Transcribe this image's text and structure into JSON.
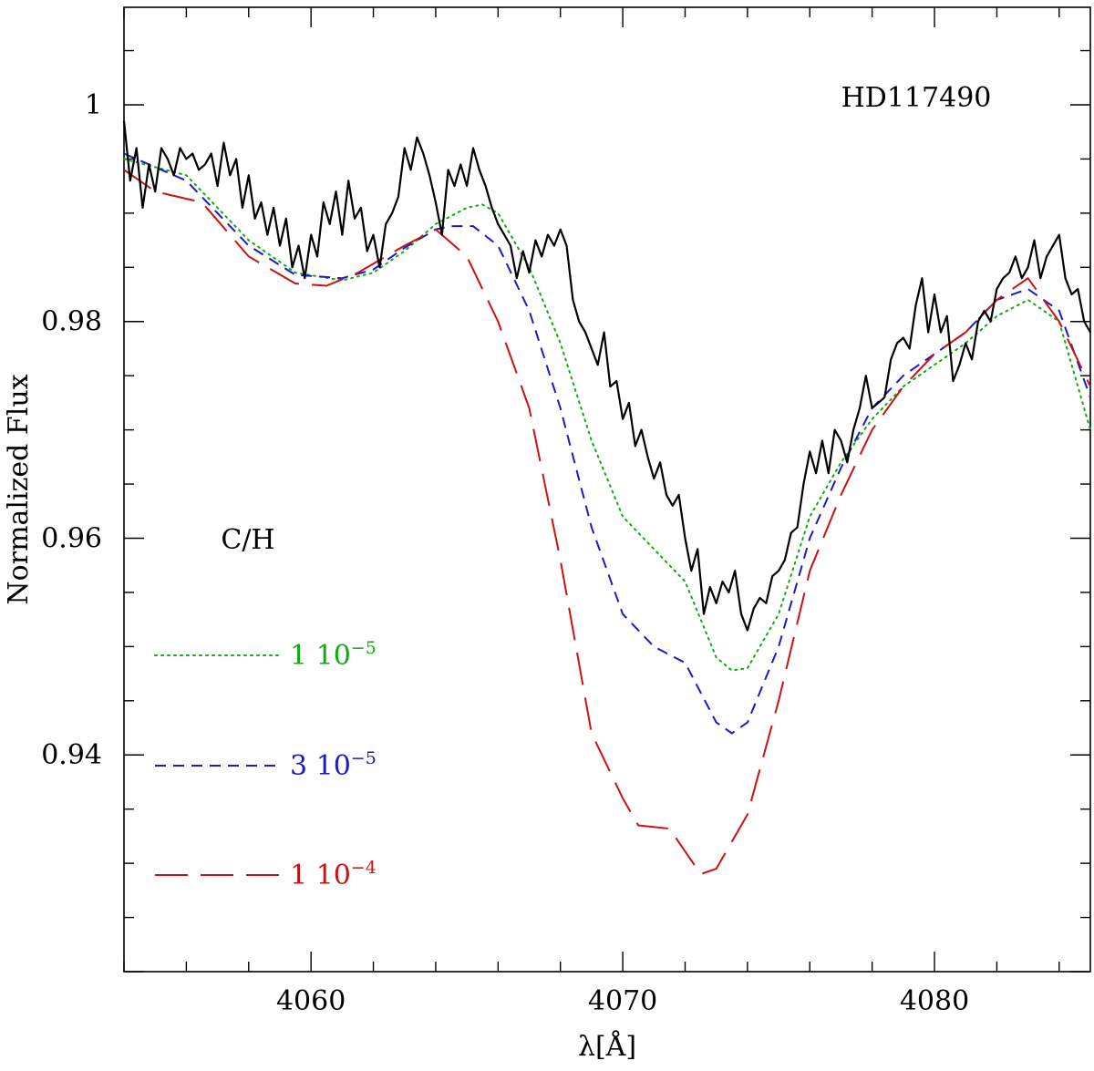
{
  "chart_data": {
    "type": "line",
    "title": "HD117490",
    "xlabel": "λ[Å]",
    "ylabel": "Normalized Flux",
    "xlim": [
      4054,
      4085
    ],
    "ylim": [
      0.92,
      1.009
    ],
    "x_ticks": [
      4060,
      4070,
      4080
    ],
    "x_tick_labels": [
      "4060",
      "4070",
      "4080"
    ],
    "y_ticks": [
      0.94,
      0.96,
      0.98,
      1.0
    ],
    "y_tick_labels": [
      "0.94",
      "0.96",
      "0.98",
      "1"
    ],
    "grid": false,
    "legend_title": "C/H",
    "legend_placement": "lower-left",
    "observed": {
      "color": "#000000",
      "x": [
        4054.0,
        4054.2,
        4054.4,
        4054.6,
        4054.8,
        4055.0,
        4055.2,
        4055.4,
        4055.6,
        4055.8,
        4056.0,
        4056.2,
        4056.4,
        4056.6,
        4056.8,
        4057.0,
        4057.2,
        4057.4,
        4057.6,
        4057.8,
        4058.0,
        4058.2,
        4058.4,
        4058.6,
        4058.8,
        4059.0,
        4059.2,
        4059.4,
        4059.6,
        4059.8,
        4060.0,
        4060.2,
        4060.4,
        4060.6,
        4060.8,
        4061.0,
        4061.2,
        4061.4,
        4061.6,
        4061.8,
        4062.0,
        4062.2,
        4062.4,
        4062.6,
        4062.8,
        4063.0,
        4063.2,
        4063.4,
        4063.6,
        4063.8,
        4064.0,
        4064.2,
        4064.4,
        4064.6,
        4064.8,
        4065.0,
        4065.2,
        4065.4,
        4065.6,
        4065.8,
        4066.0,
        4066.2,
        4066.4,
        4066.6,
        4066.8,
        4067.0,
        4067.2,
        4067.4,
        4067.6,
        4067.8,
        4068.0,
        4068.2,
        4068.4,
        4068.6,
        4068.8,
        4069.0,
        4069.2,
        4069.4,
        4069.6,
        4069.8,
        4070.0,
        4070.2,
        4070.4,
        4070.6,
        4070.8,
        4071.0,
        4071.2,
        4071.4,
        4071.6,
        4071.8,
        4072.0,
        4072.2,
        4072.4,
        4072.6,
        4072.8,
        4073.0,
        4073.2,
        4073.4,
        4073.6,
        4073.8,
        4074.0,
        4074.2,
        4074.4,
        4074.6,
        4074.8,
        4075.0,
        4075.2,
        4075.4,
        4075.6,
        4075.8,
        4076.0,
        4076.2,
        4076.4,
        4076.6,
        4076.8,
        4077.0,
        4077.2,
        4077.4,
        4077.6,
        4077.8,
        4078.0,
        4078.2,
        4078.4,
        4078.6,
        4078.8,
        4079.0,
        4079.2,
        4079.4,
        4079.6,
        4079.8,
        4080.0,
        4080.2,
        4080.4,
        4080.6,
        4080.8,
        4081.0,
        4081.2,
        4081.4,
        4081.6,
        4081.8,
        4082.0,
        4082.2,
        4082.4,
        4082.6,
        4082.8,
        4083.0,
        4083.2,
        4083.4,
        4083.6,
        4083.8,
        4084.0,
        4084.2,
        4084.4,
        4084.6,
        4084.8,
        4085.0
      ],
      "y": [
        0.9985,
        0.993,
        0.996,
        0.9905,
        0.9945,
        0.992,
        0.996,
        0.995,
        0.9935,
        0.996,
        0.995,
        0.9955,
        0.994,
        0.9945,
        0.9955,
        0.9925,
        0.9965,
        0.9935,
        0.995,
        0.9905,
        0.9935,
        0.9895,
        0.991,
        0.988,
        0.9905,
        0.987,
        0.9895,
        0.985,
        0.987,
        0.984,
        0.988,
        0.986,
        0.991,
        0.989,
        0.992,
        0.988,
        0.993,
        0.9895,
        0.9905,
        0.9865,
        0.988,
        0.985,
        0.989,
        0.99,
        0.9915,
        0.996,
        0.994,
        0.997,
        0.9955,
        0.9935,
        0.991,
        0.988,
        0.994,
        0.9925,
        0.9945,
        0.9925,
        0.996,
        0.994,
        0.9925,
        0.9905,
        0.989,
        0.988,
        0.987,
        0.984,
        0.9865,
        0.9845,
        0.9875,
        0.986,
        0.988,
        0.987,
        0.9885,
        0.987,
        0.982,
        0.98,
        0.979,
        0.9775,
        0.976,
        0.979,
        0.974,
        0.9745,
        0.971,
        0.9725,
        0.9685,
        0.97,
        0.9675,
        0.9655,
        0.967,
        0.964,
        0.963,
        0.964,
        0.96,
        0.957,
        0.959,
        0.953,
        0.9555,
        0.954,
        0.956,
        0.955,
        0.957,
        0.953,
        0.9515,
        0.9535,
        0.9545,
        0.954,
        0.9565,
        0.957,
        0.958,
        0.9605,
        0.961,
        0.965,
        0.968,
        0.966,
        0.969,
        0.966,
        0.97,
        0.969,
        0.967,
        0.97,
        0.972,
        0.975,
        0.972,
        0.9725,
        0.973,
        0.9765,
        0.978,
        0.9785,
        0.9775,
        0.9815,
        0.984,
        0.979,
        0.9825,
        0.979,
        0.9805,
        0.9745,
        0.976,
        0.978,
        0.9765,
        0.98,
        0.981,
        0.98,
        0.983,
        0.984,
        0.9845,
        0.986,
        0.984,
        0.985,
        0.9875,
        0.984,
        0.986,
        0.987,
        0.988,
        0.984,
        0.9825,
        0.983,
        0.98,
        0.979
      ]
    },
    "series": [
      {
        "name": "1 10⁻⁵",
        "name_mantissa": "1",
        "name_base": "10",
        "name_exponent": "−5",
        "color": "#11aa11",
        "style": "dotted",
        "x": [
          4054,
          4056,
          4058,
          4059.5,
          4061,
          4062,
          4063,
          4064,
          4065,
          4065.5,
          4066,
          4067,
          4068,
          4069,
          4070,
          4071,
          4072,
          4073,
          4073.5,
          4074,
          4075,
          4076,
          4077,
          4078,
          4079,
          4080,
          4081,
          4082,
          4083,
          4084,
          4085
        ],
        "y": [
          0.995,
          0.9935,
          0.9875,
          0.9845,
          0.9838,
          0.9845,
          0.9865,
          0.989,
          0.9905,
          0.9908,
          0.99,
          0.985,
          0.978,
          0.969,
          0.962,
          0.959,
          0.956,
          0.949,
          0.9478,
          0.948,
          0.953,
          0.962,
          0.967,
          0.971,
          0.974,
          0.976,
          0.978,
          0.9805,
          0.982,
          0.98,
          0.97
        ]
      },
      {
        "name": "3 10⁻⁵",
        "name_mantissa": "3",
        "name_base": "10",
        "name_exponent": "−5",
        "color": "#1a1acc",
        "style": "dashed",
        "x": [
          4054,
          4056,
          4058,
          4059.5,
          4061,
          4062,
          4063,
          4064,
          4064.5,
          4065.2,
          4066,
          4067,
          4068,
          4069,
          4070,
          4071,
          4072,
          4073,
          4073.5,
          4074,
          4075,
          4076,
          4077,
          4078,
          4079,
          4080,
          4081,
          4082,
          4083,
          4084,
          4085
        ],
        "y": [
          0.9955,
          0.993,
          0.987,
          0.9843,
          0.984,
          0.9848,
          0.9868,
          0.9885,
          0.9888,
          0.9888,
          0.987,
          0.981,
          0.972,
          0.961,
          0.953,
          0.95,
          0.9485,
          0.943,
          0.942,
          0.943,
          0.95,
          0.96,
          0.9665,
          0.972,
          0.975,
          0.977,
          0.979,
          0.982,
          0.983,
          0.981,
          0.973
        ]
      },
      {
        "name": "1 10⁻⁴",
        "name_mantissa": "1",
        "name_base": "10",
        "name_exponent": "−4",
        "color": "#cc1111",
        "style": "longdash",
        "x": [
          4054,
          4055,
          4056.5,
          4058,
          4059.5,
          4060.5,
          4061.5,
          4063,
          4064,
          4065,
          4066,
          4067,
          4068,
          4069,
          4070,
          4070.5,
          4071.5,
          4072.5,
          4073,
          4074,
          4075,
          4076,
          4077,
          4078,
          4079,
          4080,
          4081,
          4082,
          4083,
          4084,
          4085
        ],
        "y": [
          0.994,
          0.992,
          0.991,
          0.986,
          0.9835,
          0.9833,
          0.9845,
          0.987,
          0.9885,
          0.986,
          0.98,
          0.972,
          0.958,
          0.942,
          0.936,
          0.9335,
          0.9332,
          0.929,
          0.9295,
          0.9345,
          0.945,
          0.957,
          0.964,
          0.97,
          0.974,
          0.977,
          0.979,
          0.982,
          0.984,
          0.98,
          0.974
        ]
      }
    ]
  }
}
